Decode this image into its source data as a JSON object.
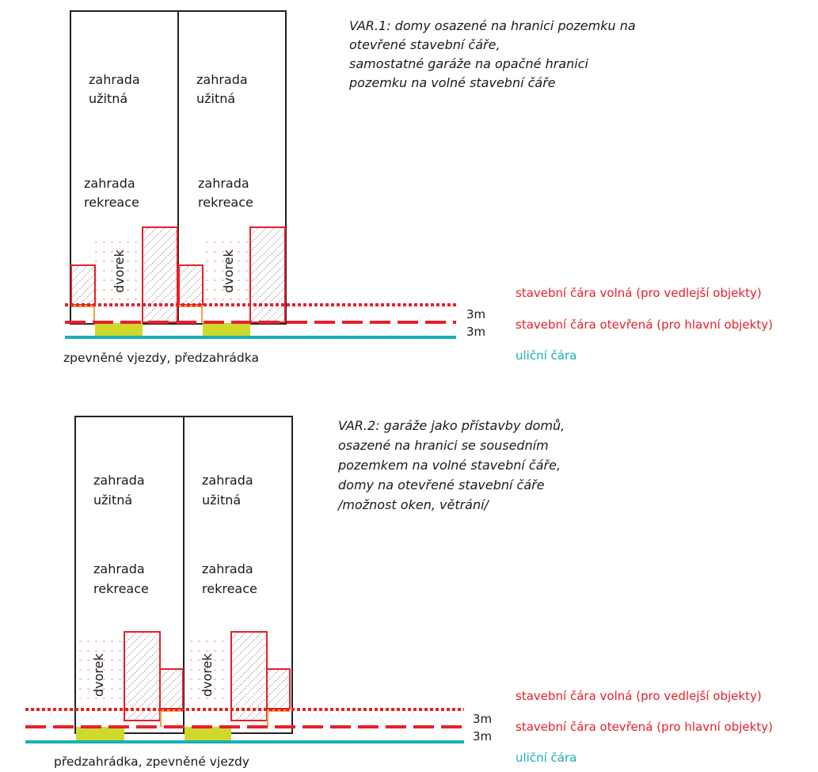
{
  "colors": {
    "red": "#e8202a",
    "teal": "#1bb0b4",
    "yellow": "#cfd92b",
    "orange": "#f0a048",
    "outline": "#222222"
  },
  "legend": {
    "line_free": "stavební čára volná (pro vedlejší objekty)",
    "line_open": "stavební čára otevřená (pro hlavní objekty)",
    "line_street": "uliční čára"
  },
  "dimensions": {
    "upper": "3m",
    "lower": "3m"
  },
  "labels": {
    "garden_useful_1": "zahrada",
    "garden_useful_2": "užitná",
    "garden_rec_1": "zahrada",
    "garden_rec_2": "rekreace",
    "courtyard": "dvorek"
  },
  "var1": {
    "lines": [
      "VAR.1: domy osazené na hranici pozemku na",
      "otevřené stavební čáře,",
      "samostatné garáže na opačné hranici",
      "pozemku  na volné stavební čáře"
    ],
    "ground_caption": "zpevněné vjezdy, předzahrádka"
  },
  "var2": {
    "lines": [
      "VAR.2: garáže jako přístavby domů,",
      "osazené na hranici se sousedním",
      "pozemkem na volné stavební čáře,",
      "domy na otevřené stavební čáře",
      "/možnost oken, větrání/"
    ],
    "ground_caption": "předzahrádka, zpevněné vjezdy"
  }
}
